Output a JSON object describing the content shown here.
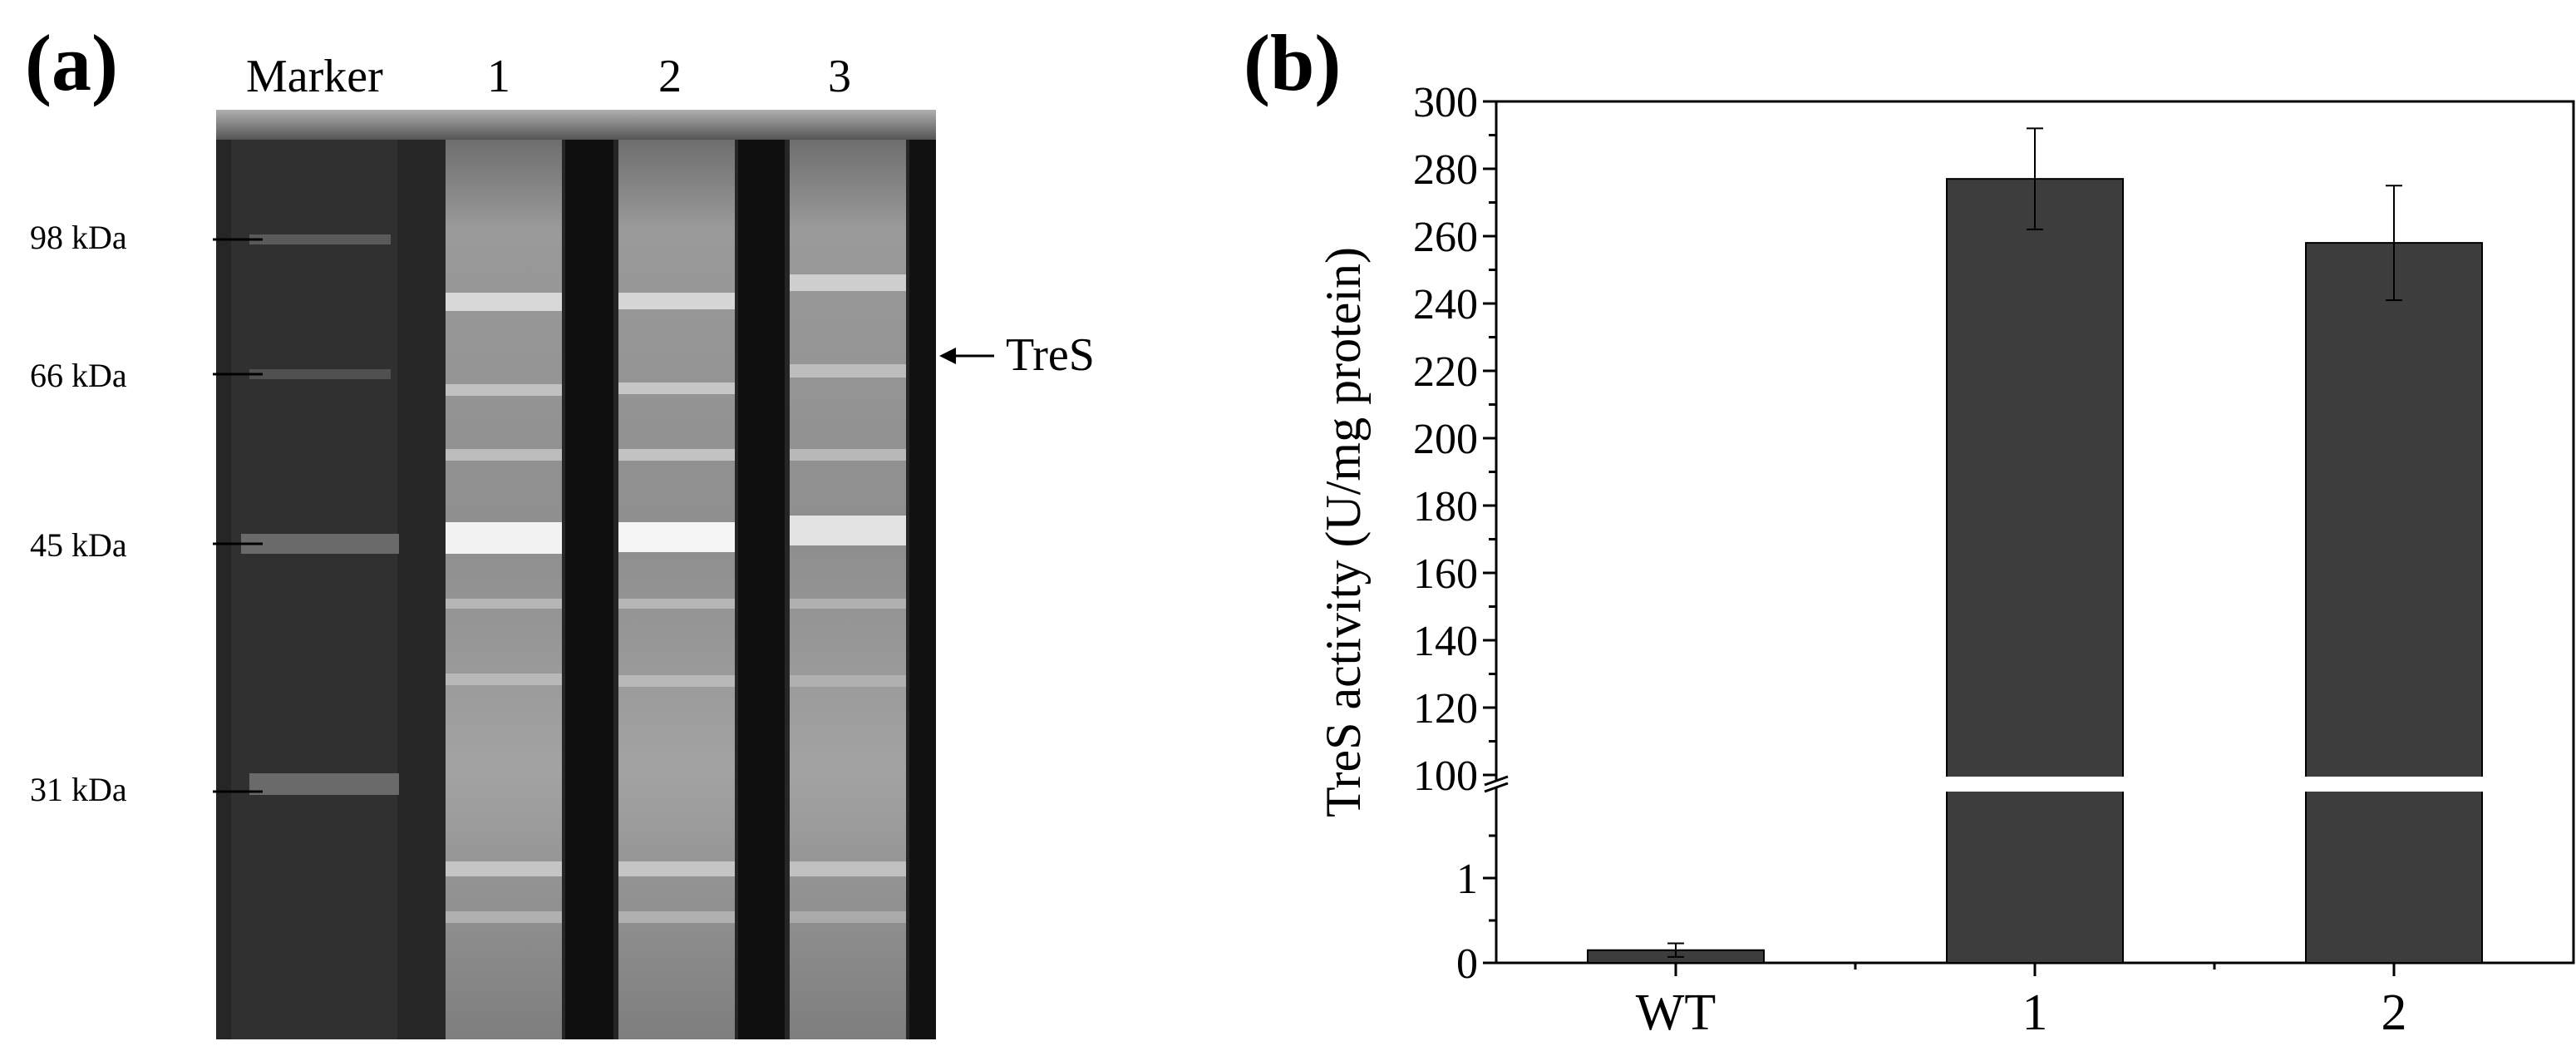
{
  "panel_a": {
    "label": "(a)",
    "lane_labels": [
      "Marker",
      "1",
      "2",
      "3"
    ],
    "mw_markers": [
      "98 kDa",
      "66 kDa",
      "45 kDa",
      "31 kDa"
    ],
    "band_annotation": "TreS"
  },
  "panel_b": {
    "label": "(b)"
  },
  "chart_data": {
    "type": "bar",
    "title": "",
    "xlabel": "",
    "ylabel": "TreS activity (U/mg protein)",
    "categories": [
      "WT",
      "1",
      "2"
    ],
    "values": [
      0.15,
      277,
      258
    ],
    "errors": [
      0.08,
      15,
      17
    ],
    "axis_break": {
      "lower_range": [
        0,
        2
      ],
      "upper_range": [
        100,
        300
      ]
    },
    "lower_ticks": [
      0,
      1
    ],
    "upper_ticks": [
      100,
      120,
      140,
      160,
      180,
      200,
      220,
      240,
      260,
      280,
      300
    ],
    "bar_color": "#3d3d3d",
    "grid": false,
    "legend": "none"
  }
}
